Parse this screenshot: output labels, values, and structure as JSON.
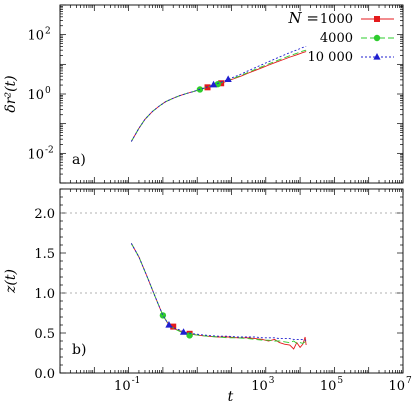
{
  "chart_data": [
    {
      "type": "line",
      "panel_label": "a)",
      "ylabel": "δr²(t)",
      "x_scale": "log",
      "y_scale": "log",
      "xlim": [
        0.001,
        10000000
      ],
      "ylim": [
        0.001,
        1000
      ],
      "yticks": [
        0.01,
        1,
        100
      ],
      "ytick_labels": [
        "10",
        "10",
        "10"
      ],
      "ytick_exponents": [
        "-2",
        "0",
        "2"
      ],
      "legend": {
        "placement": "top-right",
        "title": "N =",
        "entries": [
          "1000",
          "4000",
          "10 000"
        ]
      },
      "series": [
        {
          "name": "1000",
          "color": "#e41a1c",
          "marker": "square",
          "x": [
            0.12,
            0.2,
            0.3,
            0.5,
            0.8,
            1.2,
            2,
            3,
            5,
            8,
            12,
            20,
            30,
            50,
            80,
            120,
            200,
            300,
            500,
            800,
            1200,
            2000,
            3000,
            5000,
            8000,
            12000,
            15000
          ],
          "y": [
            0.025,
            0.07,
            0.14,
            0.26,
            0.4,
            0.55,
            0.72,
            0.87,
            1.05,
            1.22,
            1.42,
            1.68,
            1.95,
            2.3,
            2.8,
            3.3,
            4.1,
            5,
            6.3,
            7.8,
            9.4,
            11.8,
            14,
            17.5,
            21,
            25,
            27
          ],
          "markers_x": [
            20,
            50
          ],
          "markers_y": [
            1.68,
            2.3
          ]
        },
        {
          "name": "4000",
          "color": "#2ecc2e",
          "marker": "circle",
          "x": [
            0.12,
            0.2,
            0.3,
            0.5,
            0.8,
            1.2,
            2,
            3,
            5,
            8,
            12,
            20,
            30,
            50,
            80,
            120,
            200,
            300,
            500,
            800,
            1200,
            2000,
            3000,
            5000,
            8000,
            12000,
            15000
          ],
          "y": [
            0.025,
            0.07,
            0.14,
            0.26,
            0.4,
            0.55,
            0.72,
            0.87,
            1.05,
            1.22,
            1.42,
            1.7,
            1.98,
            2.35,
            2.9,
            3.45,
            4.3,
            5.3,
            6.8,
            8.5,
            10.3,
            13,
            15.5,
            19.5,
            23.5,
            28,
            30
          ],
          "markers_x": [
            12,
            40
          ],
          "markers_y": [
            1.42,
            2.15
          ]
        },
        {
          "name": "10 000",
          "color": "#1f1fcf",
          "marker": "triangle",
          "x": [
            0.12,
            0.2,
            0.3,
            0.5,
            0.8,
            1.2,
            2,
            3,
            5,
            8,
            12,
            20,
            30,
            50,
            80,
            120,
            200,
            300,
            500,
            800,
            1200,
            2000,
            3000,
            5000,
            8000,
            12000,
            15000
          ],
          "y": [
            0.025,
            0.07,
            0.14,
            0.26,
            0.4,
            0.55,
            0.72,
            0.87,
            1.05,
            1.22,
            1.44,
            1.74,
            2.05,
            2.5,
            3.1,
            3.75,
            4.8,
            6,
            7.8,
            9.9,
            12.2,
            15.8,
            19.3,
            24.8,
            30.5,
            37,
            40
          ],
          "markers_x": [
            30,
            80
          ],
          "markers_y": [
            2.05,
            3.1
          ]
        }
      ]
    },
    {
      "type": "line",
      "panel_label": "b)",
      "xlabel": "t",
      "ylabel": "z(t)",
      "x_scale": "log",
      "y_scale": "linear",
      "xlim": [
        0.001,
        10000000
      ],
      "ylim": [
        0.0,
        2.3
      ],
      "xticks": [
        0.1,
        1000,
        100000,
        10000000
      ],
      "xtick_labels": [
        "10",
        "10",
        "10",
        "10"
      ],
      "xtick_exponents": [
        "-1",
        "3",
        "5",
        "7"
      ],
      "yticks": [
        0.0,
        0.5,
        1.0,
        1.5,
        2.0
      ],
      "ytick_labels": [
        "0.0",
        "0.5",
        "1.0",
        "1.5",
        "2.0"
      ],
      "reference_lines": [
        1.0,
        2.0
      ],
      "series": [
        {
          "name": "1000",
          "color": "#e41a1c",
          "marker": "square",
          "x": [
            0.12,
            0.2,
            0.35,
            0.6,
            1,
            1.5,
            2.2,
            3.5,
            5,
            8,
            12,
            20,
            40,
            80,
            150,
            300,
            500,
            800,
            1200,
            1800,
            2500,
            3500,
            5000,
            6500,
            8000,
            10000,
            12000,
            14000,
            15000
          ],
          "y": [
            1.62,
            1.45,
            1.2,
            0.95,
            0.72,
            0.6,
            0.55,
            0.52,
            0.5,
            0.48,
            0.47,
            0.46,
            0.45,
            0.45,
            0.44,
            0.44,
            0.43,
            0.42,
            0.4,
            0.42,
            0.38,
            0.36,
            0.35,
            0.3,
            0.38,
            0.32,
            0.36,
            0.45,
            0.35
          ],
          "markers_x": [
            2,
            6
          ],
          "markers_y": [
            0.58,
            0.49
          ]
        },
        {
          "name": "4000",
          "color": "#2ecc2e",
          "marker": "circle",
          "x": [
            0.12,
            0.2,
            0.35,
            0.6,
            1,
            1.5,
            2.2,
            3.5,
            5,
            8,
            12,
            20,
            40,
            80,
            150,
            300,
            500,
            800,
            1200,
            1800,
            2500,
            3500,
            5000,
            6500,
            8000,
            10000,
            12000,
            14000,
            15000
          ],
          "y": [
            1.62,
            1.45,
            1.2,
            0.95,
            0.72,
            0.6,
            0.55,
            0.51,
            0.49,
            0.48,
            0.47,
            0.46,
            0.45,
            0.44,
            0.44,
            0.43,
            0.42,
            0.41,
            0.41,
            0.4,
            0.4,
            0.39,
            0.38,
            0.4,
            0.37,
            0.38,
            0.37,
            0.39,
            0.38
          ],
          "markers_x": [
            1,
            6
          ],
          "markers_y": [
            0.72,
            0.47
          ]
        },
        {
          "name": "10 000",
          "color": "#1f1fcf",
          "marker": "triangle",
          "x": [
            0.12,
            0.2,
            0.35,
            0.6,
            1,
            1.5,
            2.2,
            3.5,
            5,
            8,
            12,
            20,
            40,
            80,
            150,
            300,
            500,
            800,
            1200,
            1800,
            2500,
            3500,
            5000,
            6500,
            8000,
            10000,
            12000,
            14000,
            15000
          ],
          "y": [
            1.62,
            1.45,
            1.2,
            0.95,
            0.72,
            0.6,
            0.56,
            0.53,
            0.5,
            0.49,
            0.48,
            0.47,
            0.46,
            0.46,
            0.45,
            0.45,
            0.45,
            0.44,
            0.44,
            0.44,
            0.43,
            0.43,
            0.43,
            0.42,
            0.42,
            0.42,
            0.42,
            0.41,
            0.41
          ],
          "markers_x": [
            1.5,
            4
          ],
          "markers_y": [
            0.6,
            0.51
          ]
        }
      ]
    }
  ]
}
